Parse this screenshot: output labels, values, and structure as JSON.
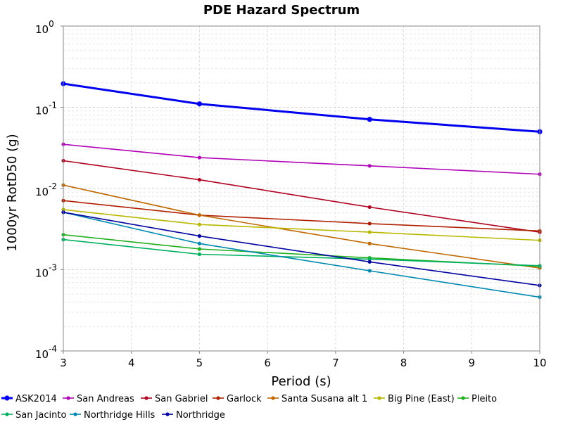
{
  "chart_data": {
    "type": "line",
    "title": "PDE Hazard Spectrum",
    "xlabel": "Period (s)",
    "ylabel": "1000yr RotD50 (g)",
    "xlim": [
      3,
      10
    ],
    "ylim": [
      0.0001,
      1
    ],
    "y_scale": "log",
    "x_ticks": [
      "3",
      "4",
      "5",
      "6",
      "7",
      "8",
      "9",
      "10"
    ],
    "y_ticks": [
      {
        "base": "10",
        "exp": "0"
      },
      {
        "base": "10",
        "exp": "-1"
      },
      {
        "base": "10",
        "exp": "-2"
      },
      {
        "base": "10",
        "exp": "-3"
      },
      {
        "base": "10",
        "exp": "-4"
      }
    ],
    "grid": true,
    "legend_position": "bottom",
    "x": [
      3,
      5,
      7.5,
      10
    ],
    "series": [
      {
        "name": "ASK2014",
        "color": "#0000ee",
        "bold": true,
        "values": [
          0.195,
          0.11,
          0.071,
          0.05
        ]
      },
      {
        "name": "San Andreas",
        "color": "#b000b8",
        "values": [
          0.035,
          0.024,
          0.019,
          0.015
        ]
      },
      {
        "name": "San Gabriel",
        "color": "#b00020",
        "values": [
          0.022,
          0.0128,
          0.0059,
          0.0029
        ]
      },
      {
        "name": "Garlock",
        "color": "#b02000",
        "values": [
          0.0071,
          0.0047,
          0.0037,
          0.003
        ]
      },
      {
        "name": "Santa Susana alt 1",
        "color": "#c06800",
        "values": [
          0.011,
          0.0047,
          0.0021,
          0.00105
        ]
      },
      {
        "name": "Big Pine (East)",
        "color": "#b8b800",
        "values": [
          0.0055,
          0.0036,
          0.0029,
          0.0023
        ]
      },
      {
        "name": "Pleito",
        "color": "#20b020",
        "values": [
          0.0027,
          0.0018,
          0.0014,
          0.0011
        ]
      },
      {
        "name": "San Jacinto",
        "color": "#00b060",
        "values": [
          0.00235,
          0.00155,
          0.00135,
          0.00112
        ]
      },
      {
        "name": "Northridge Hills",
        "color": "#0088b0",
        "values": [
          0.0051,
          0.0021,
          0.00097,
          0.00046
        ]
      },
      {
        "name": "Northridge",
        "color": "#0000a0",
        "values": [
          0.0051,
          0.0026,
          0.00125,
          0.00064
        ]
      }
    ]
  }
}
